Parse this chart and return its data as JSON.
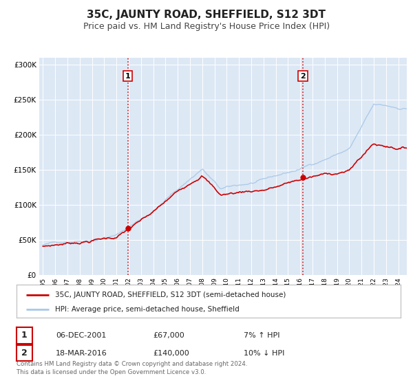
{
  "title": "35C, JAUNTY ROAD, SHEFFIELD, S12 3DT",
  "subtitle": "Price paid vs. HM Land Registry's House Price Index (HPI)",
  "legend_line1": "35C, JAUNTY ROAD, SHEFFIELD, S12 3DT (semi-detached house)",
  "legend_line2": "HPI: Average price, semi-detached house, Sheffield",
  "marker1_date": "06-DEC-2001",
  "marker1_price": "£67,000",
  "marker1_hpi": "7% ↑ HPI",
  "marker1_year": 2001.92,
  "marker1_value": 67000,
  "marker2_date": "18-MAR-2016",
  "marker2_price": "£140,000",
  "marker2_hpi": "10% ↓ HPI",
  "marker2_year": 2016.21,
  "marker2_value": 140000,
  "hpi_color": "#a8c8e8",
  "price_color": "#cc0000",
  "marker_color": "#cc0000",
  "vline_color": "#cc0000",
  "fig_bg_color": "#ffffff",
  "plot_bg_color": "#dde8f5",
  "ylim": [
    0,
    310000
  ],
  "yticks": [
    0,
    50000,
    100000,
    150000,
    200000,
    250000,
    300000
  ],
  "footer": "Contains HM Land Registry data © Crown copyright and database right 2024.\nThis data is licensed under the Open Government Licence v3.0.",
  "title_fontsize": 11,
  "subtitle_fontsize": 9
}
